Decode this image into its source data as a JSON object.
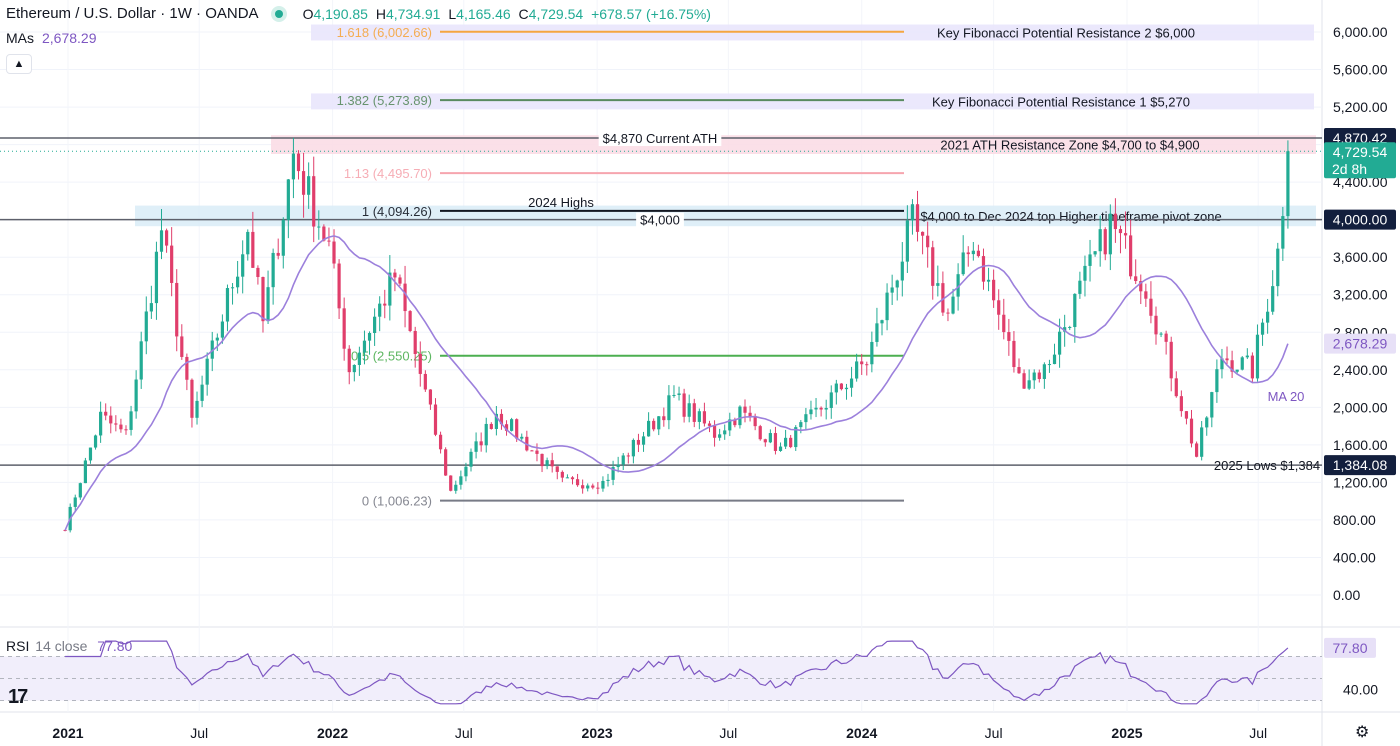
{
  "header": {
    "symbol": "Ethereum / U.S. Dollar · 1W · OANDA",
    "open_key": "O",
    "open": "4,190.85",
    "high_key": "H",
    "high": "4,734.91",
    "low_key": "L",
    "low": "4,165.46",
    "close_key": "C",
    "close": "4,729.54",
    "change": "+678.57 (+16.75%)"
  },
  "mas": {
    "label": "MAs",
    "value": "2,678.29"
  },
  "rsi": {
    "label": "RSI",
    "params": "14 close",
    "value": "77.80"
  },
  "colors": {
    "up": "#22ab94",
    "down": "#e03e6b",
    "ma": "#9c80dc",
    "rsi": "#7e57c2",
    "dark": "#131722"
  },
  "chart_data": {
    "type": "candlestick",
    "timeframe": "1W",
    "x_ticks": [
      "2021",
      "Jul",
      "2022",
      "Jul",
      "2023",
      "Jul",
      "2024",
      "Jul",
      "2025",
      "Jul"
    ],
    "y_ticks": [
      "6,000.00",
      "5,600.00",
      "5,200.00",
      "4,800.00",
      "4,400.00",
      "4,000.00",
      "3,600.00",
      "3,200.00",
      "2,800.00",
      "2,400.00",
      "2,000.00",
      "1,600.00",
      "1,200.00",
      "800.00",
      "400.00",
      "0.00"
    ],
    "ylim": [
      -40,
      6070
    ],
    "series_anchors": [
      {
        "date": "2020-12-28",
        "price": 730
      },
      {
        "date": "2021-02-15",
        "price": 1900
      },
      {
        "date": "2021-03-22",
        "price": 1700
      },
      {
        "date": "2021-05-10",
        "price": 3900
      },
      {
        "date": "2021-06-21",
        "price": 1850
      },
      {
        "date": "2021-09-06",
        "price": 3900
      },
      {
        "date": "2021-09-27",
        "price": 2900
      },
      {
        "date": "2021-11-08",
        "price": 4700
      },
      {
        "date": "2021-12-27",
        "price": 3700
      },
      {
        "date": "2022-01-24",
        "price": 2400
      },
      {
        "date": "2022-03-28",
        "price": 3400
      },
      {
        "date": "2022-06-13",
        "price": 1100
      },
      {
        "date": "2022-08-15",
        "price": 1950
      },
      {
        "date": "2022-11-14",
        "price": 1200
      },
      {
        "date": "2023-01-09",
        "price": 1200
      },
      {
        "date": "2023-04-17",
        "price": 2100
      },
      {
        "date": "2023-06-12",
        "price": 1720
      },
      {
        "date": "2023-07-17",
        "price": 1950
      },
      {
        "date": "2023-09-11",
        "price": 1550
      },
      {
        "date": "2023-11-13",
        "price": 2050
      },
      {
        "date": "2024-01-08",
        "price": 2500
      },
      {
        "date": "2024-03-11",
        "price": 3950
      },
      {
        "date": "2024-04-29",
        "price": 3000
      },
      {
        "date": "2024-06-03",
        "price": 3800
      },
      {
        "date": "2024-08-05",
        "price": 2300
      },
      {
        "date": "2024-09-09",
        "price": 2400
      },
      {
        "date": "2024-12-09",
        "price": 3950
      },
      {
        "date": "2025-01-27",
        "price": 3300
      },
      {
        "date": "2025-04-07",
        "price": 1480
      },
      {
        "date": "2025-05-12",
        "price": 2550
      },
      {
        "date": "2025-06-23",
        "price": 2400
      },
      {
        "date": "2025-07-28",
        "price": 3650
      },
      {
        "date": "2025-08-11",
        "price": 4729.54
      }
    ],
    "ma_value": 2678.29,
    "rsi_value": 77.8,
    "price_labels": [
      {
        "price": 4870.42,
        "text": "4,870.42",
        "style": "dark"
      },
      {
        "price": 4729.54,
        "text": "4,729.54",
        "sub": "2d 8h",
        "style": "green"
      },
      {
        "price": 4000,
        "text": "4,000.00",
        "style": "dark"
      },
      {
        "price": 2678.29,
        "text": "2,678.29",
        "style": "purple"
      },
      {
        "price": 1384.08,
        "text": "1,384.08",
        "style": "dark"
      }
    ],
    "zones": [
      {
        "from": 5910,
        "to": 6080,
        "fill": "#e7e4fb",
        "text": "Key Fibonacci Potential Resistance 2 $6,000"
      },
      {
        "from": 5175,
        "to": 5345,
        "fill": "#e7e4fb",
        "text": "Key Fibonacci Potential Resistance 1 $5,270"
      },
      {
        "from": 4700,
        "to": 4900,
        "fill": "#fadbe4",
        "text": "2021 ATH Resistance Zone $4,700 to $4,900"
      },
      {
        "from": 3930,
        "to": 4150,
        "fill": "#d9ecf7",
        "text": "$4,000 to Dec 2024 top Higher timeframe pivot zone"
      }
    ],
    "fib_levels": [
      {
        "ratio": "1.618",
        "price": 6002.66,
        "text": "1.618 (6,002.66)",
        "color": "#f5a640"
      },
      {
        "ratio": "1.382",
        "price": 5273.89,
        "text": "1.382 (5,273.89)",
        "color": "#598a5f"
      },
      {
        "ratio": "1.13",
        "price": 4495.7,
        "text": "1.13 (4,495.70)",
        "color": "#f6a5ae"
      },
      {
        "ratio": "1",
        "price": 4094.26,
        "text": "1 (4,094.26)",
        "color": "#131722"
      },
      {
        "ratio": "0.5",
        "price": 2550.25,
        "text": "0.5 (2,550.25)",
        "color": "#4caf50"
      },
      {
        "ratio": "0",
        "price": 1006.23,
        "text": "0 (1,006.23)",
        "color": "#787b86"
      }
    ],
    "h_lines": [
      {
        "price": 4870,
        "text": "$4,870 Current ATH"
      },
      {
        "price": 4000,
        "text": "$4,000"
      },
      {
        "price": 1384,
        "text": "2025 Lows $1,384"
      }
    ],
    "annotations": [
      {
        "text": "2024 Highs",
        "price": 4094.26
      },
      {
        "text": "MA 20",
        "price": 2120
      }
    ],
    "rsi_ticks": [
      "40.00"
    ],
    "rsi_bands": [
      70,
      30
    ]
  }
}
